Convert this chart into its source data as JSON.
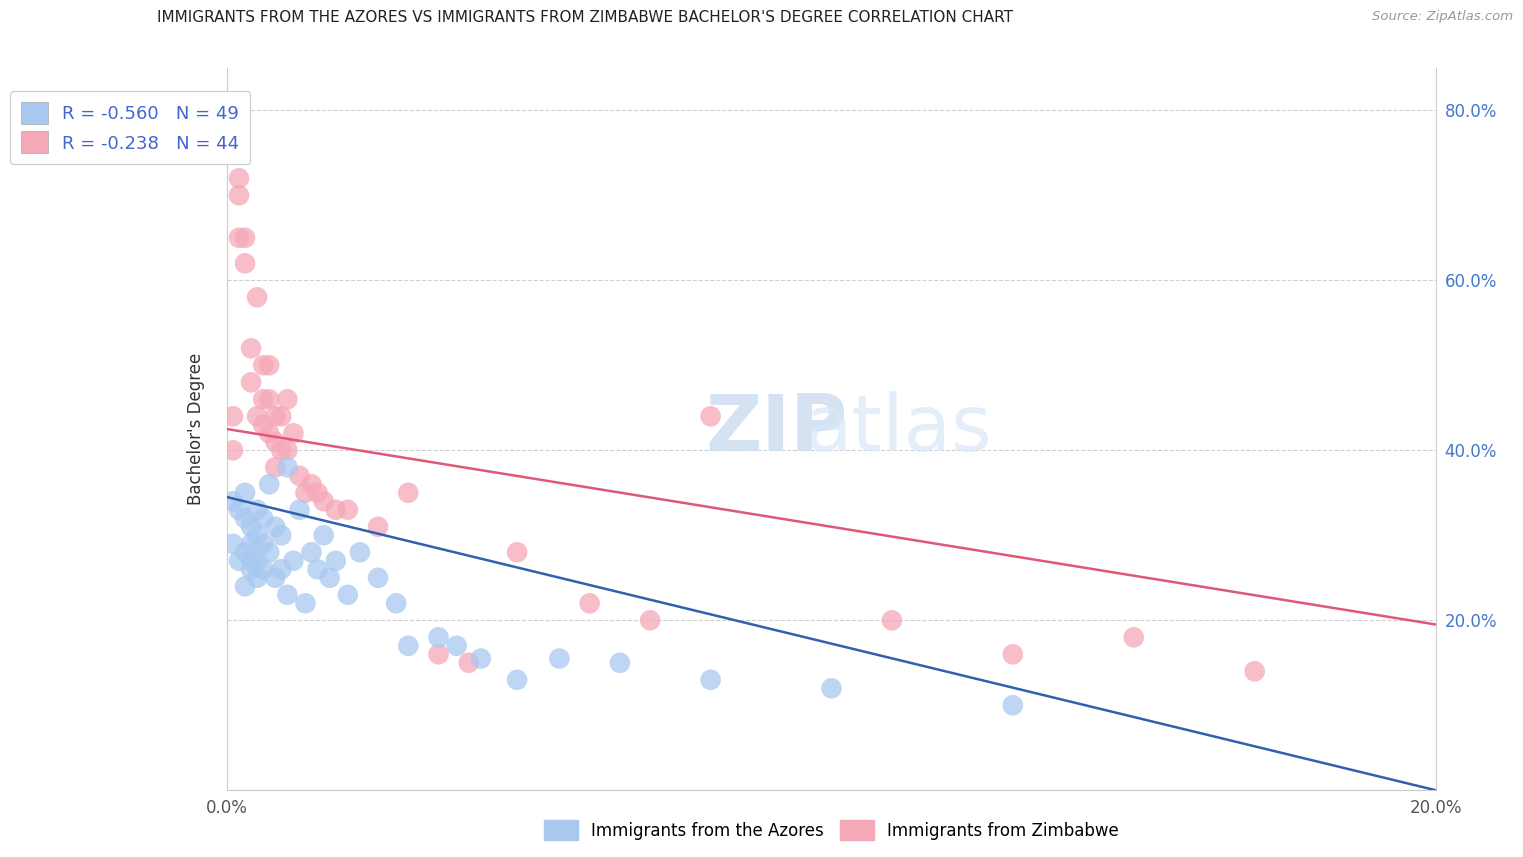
{
  "title": "IMMIGRANTS FROM THE AZORES VS IMMIGRANTS FROM ZIMBABWE BACHELOR'S DEGREE CORRELATION CHART",
  "source": "Source: ZipAtlas.com",
  "ylabel": "Bachelor's Degree",
  "xlim": [
    0.0,
    0.2
  ],
  "ylim": [
    0.0,
    0.85
  ],
  "xticks": [
    0.0,
    0.05,
    0.1,
    0.15,
    0.2
  ],
  "xticklabels": [
    "0.0%",
    "",
    "",
    "",
    "20.0%"
  ],
  "yticks": [
    0.0,
    0.2,
    0.4,
    0.6,
    0.8
  ],
  "right_yticklabels": [
    "",
    "20.0%",
    "40.0%",
    "60.0%",
    "80.0%"
  ],
  "azores_R": -0.56,
  "azores_N": 49,
  "zimbabwe_R": -0.238,
  "zimbabwe_N": 44,
  "azores_color": "#a8c8f0",
  "zimbabwe_color": "#f5a8b8",
  "azores_line_color": "#3060b0",
  "zimbabwe_line_color": "#e05878",
  "watermark_zip": "ZIP",
  "watermark_atlas": "atlas",
  "azores_x": [
    0.001,
    0.001,
    0.002,
    0.002,
    0.003,
    0.003,
    0.003,
    0.003,
    0.004,
    0.004,
    0.004,
    0.004,
    0.005,
    0.005,
    0.005,
    0.005,
    0.006,
    0.006,
    0.006,
    0.007,
    0.007,
    0.008,
    0.008,
    0.009,
    0.009,
    0.01,
    0.01,
    0.011,
    0.012,
    0.013,
    0.014,
    0.015,
    0.016,
    0.017,
    0.018,
    0.02,
    0.022,
    0.025,
    0.028,
    0.03,
    0.035,
    0.038,
    0.042,
    0.048,
    0.055,
    0.065,
    0.08,
    0.1,
    0.13
  ],
  "azores_y": [
    0.34,
    0.29,
    0.33,
    0.27,
    0.35,
    0.32,
    0.28,
    0.24,
    0.31,
    0.29,
    0.27,
    0.26,
    0.33,
    0.3,
    0.27,
    0.25,
    0.32,
    0.29,
    0.26,
    0.36,
    0.28,
    0.31,
    0.25,
    0.3,
    0.26,
    0.38,
    0.23,
    0.27,
    0.33,
    0.22,
    0.28,
    0.26,
    0.3,
    0.25,
    0.27,
    0.23,
    0.28,
    0.25,
    0.22,
    0.17,
    0.18,
    0.17,
    0.155,
    0.13,
    0.155,
    0.15,
    0.13,
    0.12,
    0.1
  ],
  "zimbabwe_x": [
    0.001,
    0.001,
    0.002,
    0.002,
    0.002,
    0.003,
    0.003,
    0.004,
    0.004,
    0.005,
    0.005,
    0.006,
    0.006,
    0.006,
    0.007,
    0.007,
    0.007,
    0.008,
    0.008,
    0.008,
    0.009,
    0.009,
    0.01,
    0.01,
    0.011,
    0.012,
    0.013,
    0.014,
    0.015,
    0.016,
    0.018,
    0.02,
    0.025,
    0.03,
    0.035,
    0.04,
    0.048,
    0.06,
    0.07,
    0.08,
    0.11,
    0.13,
    0.15,
    0.17
  ],
  "zimbabwe_y": [
    0.44,
    0.4,
    0.72,
    0.7,
    0.65,
    0.65,
    0.62,
    0.52,
    0.48,
    0.58,
    0.44,
    0.5,
    0.46,
    0.43,
    0.5,
    0.46,
    0.42,
    0.44,
    0.41,
    0.38,
    0.44,
    0.4,
    0.46,
    0.4,
    0.42,
    0.37,
    0.35,
    0.36,
    0.35,
    0.34,
    0.33,
    0.33,
    0.31,
    0.35,
    0.16,
    0.15,
    0.28,
    0.22,
    0.2,
    0.44,
    0.2,
    0.16,
    0.18,
    0.14
  ],
  "azores_line_x0": 0.0,
  "azores_line_y0": 0.345,
  "azores_line_x1": 0.2,
  "azores_line_y1": 0.0,
  "zimbabwe_line_x0": 0.0,
  "zimbabwe_line_y0": 0.425,
  "zimbabwe_line_x1": 0.2,
  "zimbabwe_line_y1": 0.195
}
